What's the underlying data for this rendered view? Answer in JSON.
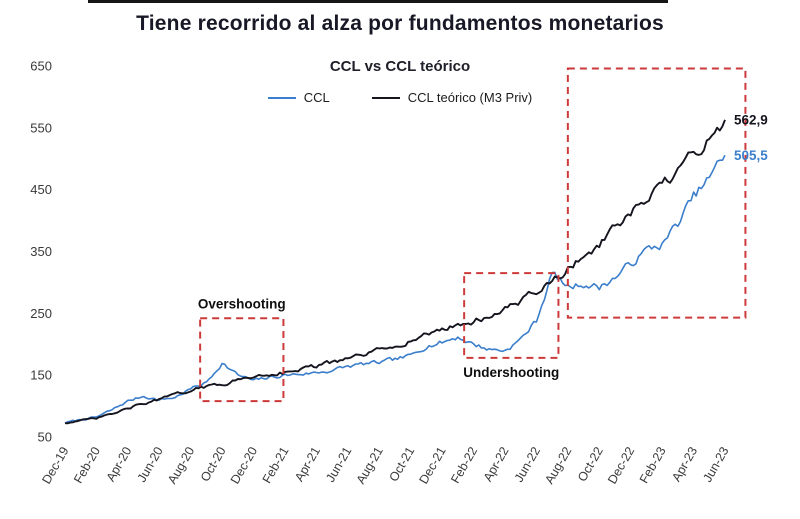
{
  "header": {
    "title": "Tiene recorrido al alza por fundamentos monetarios"
  },
  "colors": {
    "annotation_red": "#cd3a3a",
    "axis_text": "#3a3a3a",
    "title_text": "#181826"
  },
  "chart_data": {
    "type": "line",
    "title": "CCL vs CCL teórico",
    "xlabel": "",
    "ylabel": "",
    "ylim": [
      50,
      650
    ],
    "yticks": [
      50,
      150,
      250,
      350,
      450,
      550,
      650
    ],
    "grid": false,
    "legend_position": "top",
    "x_tick_every": 2,
    "x": [
      "Dec-19",
      "Jan-20",
      "Feb-20",
      "Mar-20",
      "Apr-20",
      "May-20",
      "Jun-20",
      "Jul-20",
      "Aug-20",
      "Sep-20",
      "Oct-20",
      "Nov-20",
      "Dec-20",
      "Jan-21",
      "Feb-21",
      "Mar-21",
      "Apr-21",
      "May-21",
      "Jun-21",
      "Jul-21",
      "Aug-21",
      "Sep-21",
      "Oct-21",
      "Nov-21",
      "Dec-21",
      "Jan-22",
      "Feb-22",
      "Mar-22",
      "Apr-22",
      "May-22",
      "Jun-22",
      "Jul-22",
      "Aug-22",
      "Sep-22",
      "Oct-22",
      "Nov-22",
      "Dec-22",
      "Jan-23",
      "Feb-23",
      "Mar-23",
      "Apr-23",
      "May-23",
      "Jun-23"
    ],
    "series": [
      {
        "name": "CCL",
        "color": "#3b7ecb",
        "end_label": "505,5",
        "values": [
          73,
          78,
          82,
          94,
          108,
          116,
          110,
          114,
          128,
          138,
          170,
          150,
          141,
          146,
          150,
          152,
          154,
          158,
          164,
          168,
          170,
          175,
          181,
          198,
          203,
          212,
          200,
          192,
          190,
          208,
          238,
          315,
          292,
          298,
          292,
          308,
          330,
          352,
          362,
          395,
          438,
          468,
          505.5
        ]
      },
      {
        "name": "CCL teórico (M3 Priv)",
        "color": "#15151f",
        "end_label": "562,9",
        "values": [
          73,
          76,
          80,
          87,
          96,
          104,
          111,
          118,
          126,
          131,
          136,
          142,
          148,
          152,
          155,
          160,
          165,
          170,
          176,
          183,
          190,
          198,
          206,
          215,
          225,
          231,
          237,
          246,
          256,
          270,
          285,
          301,
          322,
          341,
          362,
          386,
          410,
          432,
          455,
          480,
          505,
          532,
          562.9
        ]
      }
    ],
    "annotations": [
      {
        "id": "overshooting-box",
        "label": "Overshooting",
        "x_start": 8.6,
        "x_end": 13.9,
        "y_min": 108,
        "y_max": 242,
        "label_pos": "above"
      },
      {
        "id": "undershooting-box",
        "label": "Undershooting",
        "x_start": 25.4,
        "x_end": 31.4,
        "y_min": 178,
        "y_max": 315,
        "label_pos": "below"
      },
      {
        "id": "breakout-box",
        "label": "",
        "x_start": 32.0,
        "x_end": 43.3,
        "y_min": 243,
        "y_max": 646,
        "label_pos": "none"
      }
    ]
  }
}
